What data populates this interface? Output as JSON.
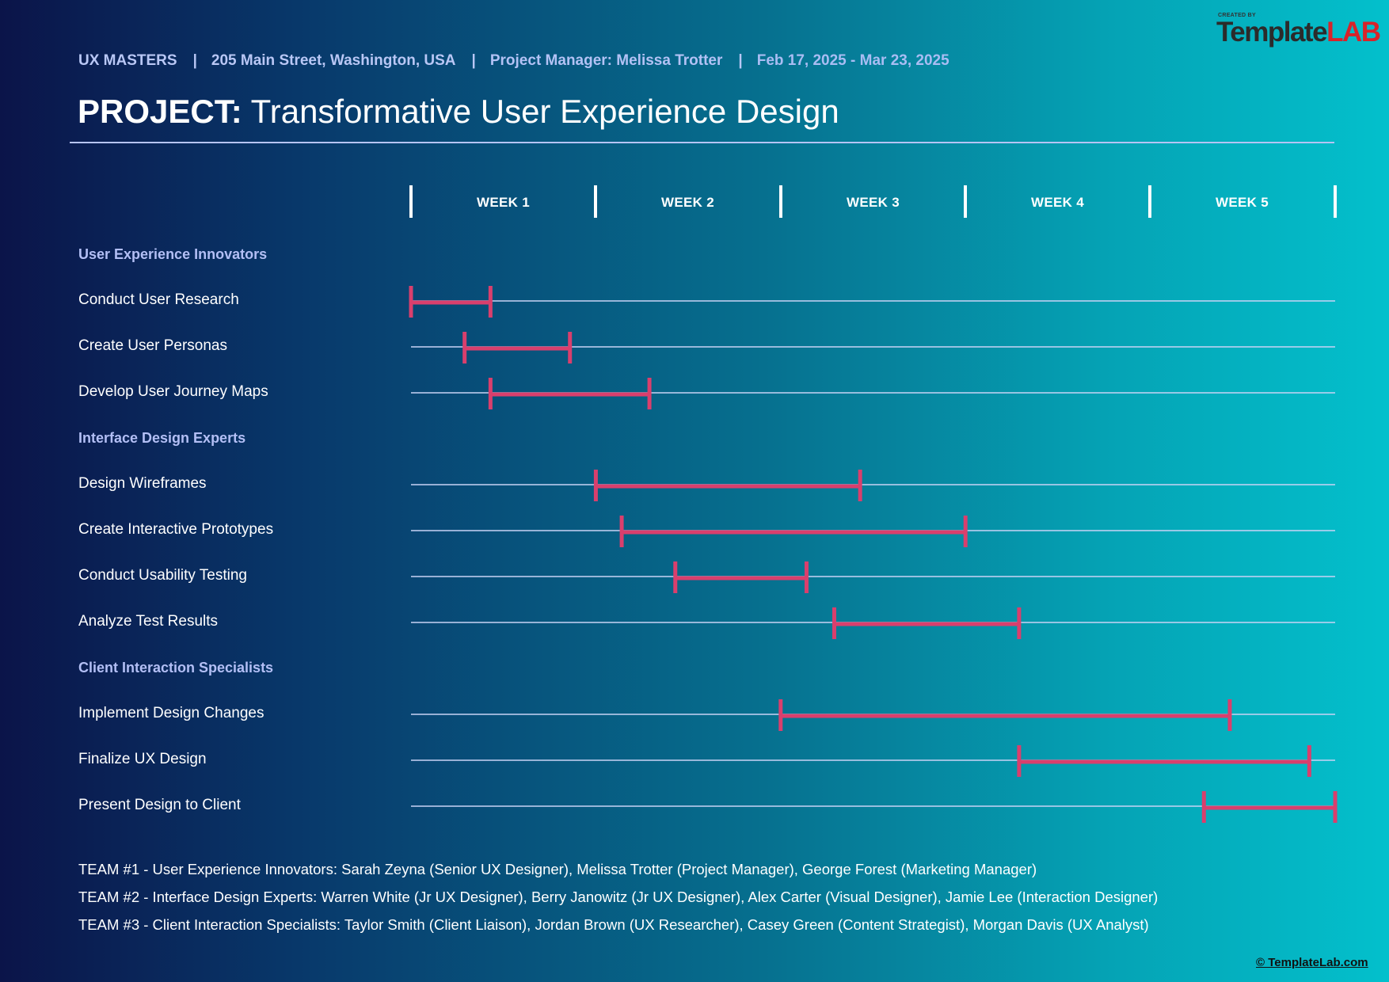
{
  "logo": {
    "created_by": "CREATED BY",
    "part1": "Template",
    "part2": "LAB"
  },
  "header": {
    "company": "UX MASTERS",
    "address": "205 Main Street, Washington, USA",
    "manager": "Project Manager: Melissa Trotter",
    "dates": "Feb 17, 2025 - Mar 23, 2025",
    "separator": "|"
  },
  "title": {
    "prefix": "PROJECT:",
    "name": "Transformative User Experience Design"
  },
  "chart_data": {
    "type": "gantt",
    "unit": "weeks",
    "range": [
      0,
      5
    ],
    "weeks": [
      "WEEK 1",
      "WEEK 2",
      "WEEK 3",
      "WEEK 4",
      "WEEK 5"
    ],
    "bar_color": "#d93f6d",
    "track_color": "#c9d3f5",
    "rows": [
      {
        "kind": "group",
        "label": "User Experience Innovators"
      },
      {
        "kind": "task",
        "label": "Conduct User Research",
        "start": 0.0,
        "end": 0.43
      },
      {
        "kind": "task",
        "label": "Create User Personas",
        "start": 0.29,
        "end": 0.86
      },
      {
        "kind": "task",
        "label": "Develop User Journey Maps",
        "start": 0.43,
        "end": 1.29
      },
      {
        "kind": "group",
        "label": "Interface Design Experts"
      },
      {
        "kind": "task",
        "label": "Design Wireframes",
        "start": 1.0,
        "end": 2.43
      },
      {
        "kind": "task",
        "label": "Create Interactive Prototypes",
        "start": 1.14,
        "end": 3.0
      },
      {
        "kind": "task",
        "label": "Conduct Usability Testing",
        "start": 1.43,
        "end": 2.14
      },
      {
        "kind": "task",
        "label": "Analyze Test Results",
        "start": 2.29,
        "end": 3.29
      },
      {
        "kind": "group",
        "label": "Client Interaction Specialists"
      },
      {
        "kind": "task",
        "label": "Implement Design Changes",
        "start": 2.0,
        "end": 4.43
      },
      {
        "kind": "task",
        "label": "Finalize UX Design",
        "start": 3.29,
        "end": 4.86
      },
      {
        "kind": "task",
        "label": "Present Design to Client",
        "start": 4.29,
        "end": 5.0
      }
    ]
  },
  "teams": [
    "TEAM #1 - User Experience Innovators: Sarah Zeyna (Senior UX Designer), Melissa Trotter (Project Manager), George Forest (Marketing Manager)",
    "TEAM #2 - Interface Design Experts: Warren White (Jr UX Designer), Berry Janowitz (Jr UX Designer), Alex Carter (Visual Designer), Jamie Lee (Interaction Designer)",
    "TEAM #3 - Client Interaction Specialists: Taylor Smith (Client Liaison), Jordan Brown (UX Researcher), Casey Green (Content Strategist), Morgan Davis (UX Analyst)"
  ],
  "footer": {
    "copyright": "© TemplateLab.com"
  }
}
